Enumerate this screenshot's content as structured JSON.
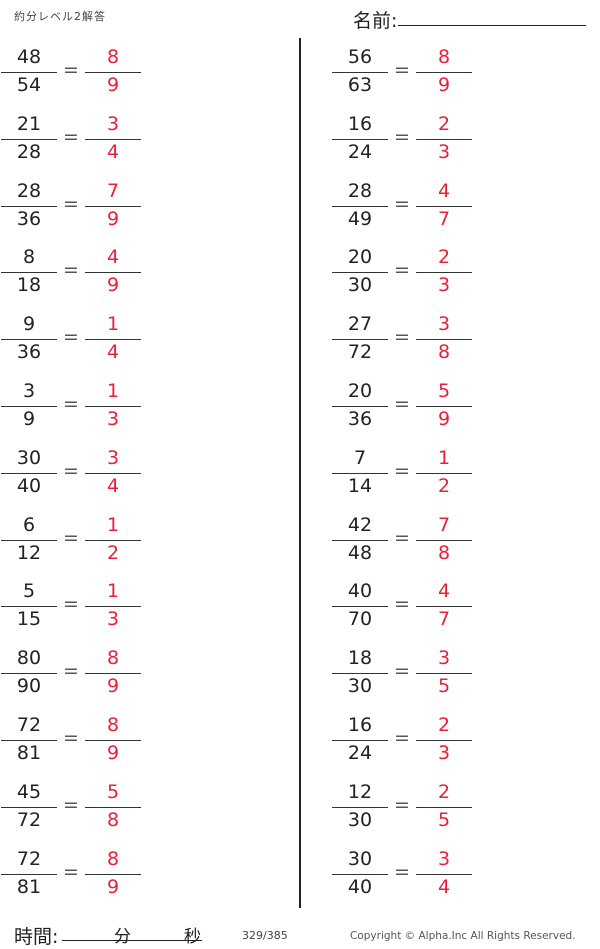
{
  "header": {
    "title": "約分レベル2解答",
    "name_label": "名前:"
  },
  "colors": {
    "answer": "#e8203a",
    "text": "#222222"
  },
  "equals": "=",
  "problems": {
    "left": [
      {
        "num": "48",
        "den": "54",
        "ans_num": "8",
        "ans_den": "9"
      },
      {
        "num": "21",
        "den": "28",
        "ans_num": "3",
        "ans_den": "4"
      },
      {
        "num": "28",
        "den": "36",
        "ans_num": "7",
        "ans_den": "9"
      },
      {
        "num": "8",
        "den": "18",
        "ans_num": "4",
        "ans_den": "9"
      },
      {
        "num": "9",
        "den": "36",
        "ans_num": "1",
        "ans_den": "4"
      },
      {
        "num": "3",
        "den": "9",
        "ans_num": "1",
        "ans_den": "3"
      },
      {
        "num": "30",
        "den": "40",
        "ans_num": "3",
        "ans_den": "4"
      },
      {
        "num": "6",
        "den": "12",
        "ans_num": "1",
        "ans_den": "2"
      },
      {
        "num": "5",
        "den": "15",
        "ans_num": "1",
        "ans_den": "3"
      },
      {
        "num": "80",
        "den": "90",
        "ans_num": "8",
        "ans_den": "9"
      },
      {
        "num": "72",
        "den": "81",
        "ans_num": "8",
        "ans_den": "9"
      },
      {
        "num": "45",
        "den": "72",
        "ans_num": "5",
        "ans_den": "8"
      },
      {
        "num": "72",
        "den": "81",
        "ans_num": "8",
        "ans_den": "9"
      }
    ],
    "right": [
      {
        "num": "56",
        "den": "63",
        "ans_num": "8",
        "ans_den": "9"
      },
      {
        "num": "16",
        "den": "24",
        "ans_num": "2",
        "ans_den": "3"
      },
      {
        "num": "28",
        "den": "49",
        "ans_num": "4",
        "ans_den": "7"
      },
      {
        "num": "20",
        "den": "30",
        "ans_num": "2",
        "ans_den": "3"
      },
      {
        "num": "27",
        "den": "72",
        "ans_num": "3",
        "ans_den": "8"
      },
      {
        "num": "20",
        "den": "36",
        "ans_num": "5",
        "ans_den": "9"
      },
      {
        "num": "7",
        "den": "14",
        "ans_num": "1",
        "ans_den": "2"
      },
      {
        "num": "42",
        "den": "48",
        "ans_num": "7",
        "ans_den": "8"
      },
      {
        "num": "40",
        "den": "70",
        "ans_num": "4",
        "ans_den": "7"
      },
      {
        "num": "18",
        "den": "30",
        "ans_num": "3",
        "ans_den": "5"
      },
      {
        "num": "16",
        "den": "24",
        "ans_num": "2",
        "ans_den": "3"
      },
      {
        "num": "12",
        "den": "30",
        "ans_num": "2",
        "ans_den": "5"
      },
      {
        "num": "30",
        "den": "40",
        "ans_num": "3",
        "ans_den": "4"
      }
    ]
  },
  "footer": {
    "time_label": "時間:",
    "minutes": "分",
    "seconds": "秒",
    "page": "329/385",
    "copyright": "Copyright ©  Alpha.Inc All Rights Reserved."
  }
}
